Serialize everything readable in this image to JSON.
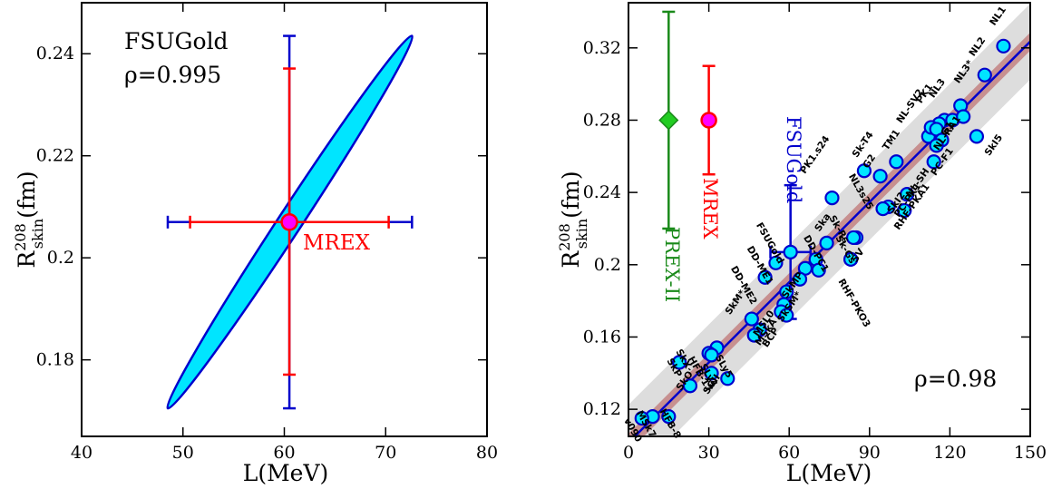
{
  "chart_data": [
    {
      "type": "scatter",
      "panel": "left",
      "xlabel": "L(MeV)",
      "ylabel": {
        "main": "R",
        "sup": "208",
        "sub": "skin",
        "unit": "(fm)"
      },
      "xlim": [
        40,
        80
      ],
      "ylim": [
        0.165,
        0.25
      ],
      "xticks": [
        40,
        50,
        60,
        70,
        80
      ],
      "yticks": [
        0.18,
        0.2,
        0.22,
        0.24
      ],
      "grid": false,
      "annotations": [
        "FSUGold",
        "ρ=0.995"
      ],
      "ellipse": {
        "label": "FSUGold covariance ellipse",
        "color": "#00e5ff",
        "edge_color": "#0000cc",
        "end_points": [
          [
            48.5,
            0.1705
          ],
          [
            72.6,
            0.2435
          ]
        ],
        "half_width_L": 1.2
      },
      "errorbars": [
        {
          "name": "FSUGold",
          "color": "#0000cc",
          "x": 60.5,
          "y": 0.207,
          "xerr": [
            48.5,
            72.6
          ],
          "yerr": [
            0.1705,
            0.2435
          ]
        },
        {
          "name": "MREX",
          "color": "#ff0000",
          "x": 60.5,
          "y": 0.207,
          "xerr": [
            50.7,
            70.3
          ],
          "yerr": [
            0.1771,
            0.2371
          ]
        }
      ],
      "point": {
        "name": "MREX",
        "x": 60.5,
        "y": 0.207,
        "color": "#ff00ff",
        "edge_color": "#ff0000"
      },
      "point_label": "MREX"
    },
    {
      "type": "scatter",
      "panel": "right",
      "xlabel": "L(MeV)",
      "ylabel": {
        "main": "R",
        "sup": "208",
        "sub": "skin",
        "unit": "(fm)"
      },
      "xlim": [
        0,
        150
      ],
      "ylim": [
        0.105,
        0.345
      ],
      "xticks": [
        0,
        30,
        60,
        90,
        120,
        150
      ],
      "yticks": [
        0.12,
        0.16,
        0.2,
        0.24,
        0.28,
        0.32
      ],
      "grid": false,
      "annotations": [
        "ρ=0.98"
      ],
      "fit": {
        "color": "#0000cc",
        "points": [
          [
            0,
            0.1015
          ],
          [
            150,
            0.3235
          ]
        ],
        "band_inner_halfwidth": 0.005,
        "band_outer_halfwidth": 0.021,
        "band_inner_color": "#c79090",
        "band_outer_color": "#dddddd"
      },
      "models": [
        {
          "name": "NL1",
          "x": 140,
          "y": 0.321
        },
        {
          "name": "NL2",
          "x": 133,
          "y": 0.305
        },
        {
          "name": "NL3*",
          "x": 124,
          "y": 0.288
        },
        {
          "name": "NL3",
          "x": 118,
          "y": 0.28
        },
        {
          "name": "PK1",
          "x": 116,
          "y": 0.278
        },
        {
          "name": "NL-SV2",
          "x": 112,
          "y": 0.271
        },
        {
          "name": "",
          "x": 113,
          "y": 0.276
        },
        {
          "name": "",
          "x": 121,
          "y": 0.28
        },
        {
          "name": "",
          "x": 125,
          "y": 0.282
        },
        {
          "name": "",
          "x": 115,
          "y": 0.275
        },
        {
          "name": "G1",
          "x": 117,
          "y": 0.269
        },
        {
          "name": "NL-RA1",
          "x": 115,
          "y": 0.266
        },
        {
          "name": "PC-F1",
          "x": 114,
          "y": 0.257
        },
        {
          "name": "NL-SH",
          "x": 104,
          "y": 0.239
        },
        {
          "name": "PC-PK1",
          "x": 103,
          "y": 0.23
        },
        {
          "name": "SkI5",
          "x": 130,
          "y": 0.271
        },
        {
          "name": "TM1",
          "x": 100,
          "y": 0.257
        },
        {
          "name": "G2",
          "x": 94,
          "y": 0.249
        },
        {
          "name": "Sk-T4",
          "x": 88,
          "y": 0.252
        },
        {
          "name": "NL3s25",
          "x": 95,
          "y": 0.231
        },
        {
          "name": "",
          "x": 97,
          "y": 0.232
        },
        {
          "name": "PK1.s24",
          "x": 76,
          "y": 0.237
        },
        {
          "name": "Sk-Rs",
          "x": 85,
          "y": 0.215
        },
        {
          "name": "SV",
          "x": 83,
          "y": 0.203
        },
        {
          "name": "SkI2",
          "x": 95,
          "y": 0.231
        },
        {
          "name": "Sk-Gs",
          "x": 84,
          "y": 0.215
        },
        {
          "name": "RHF-PKA1",
          "x": 103,
          "y": 0.23
        },
        {
          "name": "RHF-PKO3",
          "x": 83,
          "y": 0.203
        },
        {
          "name": "Ska",
          "x": 74,
          "y": 0.212
        },
        {
          "name": "DD-PC1",
          "x": 70,
          "y": 0.203
        },
        {
          "name": "",
          "x": 71,
          "y": 0.197
        },
        {
          "name": "",
          "x": 66,
          "y": 0.198
        },
        {
          "name": "FSUGold",
          "x": 60.5,
          "y": 0.207
        },
        {
          "name": "DD-ME1",
          "x": 55,
          "y": 0.201
        },
        {
          "name": "DD-ME2",
          "x": 51,
          "y": 0.193
        },
        {
          "name": "",
          "x": 64,
          "y": 0.192
        },
        {
          "name": "SkMP",
          "x": 59,
          "y": 0.185
        },
        {
          "name": "SkSM*",
          "x": 58,
          "y": 0.178
        },
        {
          "name": "",
          "x": 57,
          "y": 0.174
        },
        {
          "name": "",
          "x": 59,
          "y": 0.172
        },
        {
          "name": "SkM*",
          "x": 46,
          "y": 0.17
        },
        {
          "name": "MSL0",
          "x": 49,
          "y": 0.164
        },
        {
          "name": "MSkA",
          "x": 47,
          "y": 0.161
        },
        {
          "name": "BCP",
          "x": 47,
          "y": 0.161
        },
        {
          "name": "SLy5",
          "x": 33,
          "y": 0.154
        },
        {
          "name": "SLy4",
          "x": 30,
          "y": 0.151
        },
        {
          "name": "HFB-17",
          "x": 31,
          "y": 0.15
        },
        {
          "name": "SkX",
          "x": 19,
          "y": 0.146
        },
        {
          "name": "SkP",
          "x": 19,
          "y": 0.146
        },
        {
          "name": "SkO'",
          "x": 23,
          "y": 0.133
        },
        {
          "name": "SGII",
          "x": 31,
          "y": 0.14
        },
        {
          "name": "",
          "x": 37,
          "y": 0.137
        },
        {
          "name": "HFB-8",
          "x": 15,
          "y": 0.116
        },
        {
          "name": "MSk7",
          "x": 9,
          "y": 0.116
        },
        {
          "name": "v090",
          "x": 5,
          "y": 0.115
        }
      ],
      "errorbars": [
        {
          "name": "PREX-II",
          "color": "#1a8a1a",
          "x": 15,
          "y": 0.28,
          "yerr": [
            0.22,
            0.34
          ],
          "marker": "diamond",
          "marker_color": "#22cc22"
        },
        {
          "name": "MREX",
          "color": "#ff0000",
          "x": 30,
          "y": 0.28,
          "yerr": [
            0.25,
            0.31
          ],
          "marker": "circle",
          "marker_color": "#ff00ff"
        },
        {
          "name": "FSUGold",
          "color": "#0000cc",
          "x": 60.5,
          "y": 0.207,
          "xerr": [
            53,
            68
          ],
          "yerr": [
            0.17,
            0.244
          ]
        }
      ],
      "vertical_labels": [
        "PREX-II",
        "MREX",
        "FSUGold"
      ]
    }
  ],
  "colors": {
    "fsugold": "#0000cc",
    "mrex": "#ff0000",
    "prex": "#1a8a1a",
    "ellipse_fill": "#00e5ff",
    "marker_fill": "#00e5ff"
  }
}
